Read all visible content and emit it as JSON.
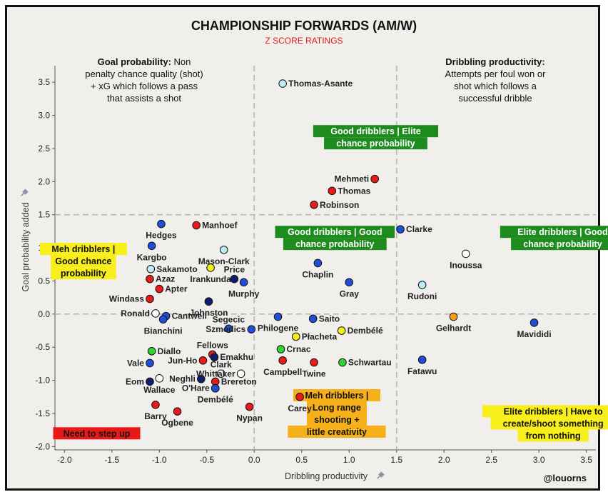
{
  "title": "CHAMPIONSHIP FORWARDS (AM/W)",
  "subtitle": "Z SCORE RATINGS",
  "credit": "@louorns",
  "notes": {
    "left": {
      "bold": "Goal probability:",
      "lines": [
        " Non",
        "penalty chance quality (shot)",
        "+ xG which follows a pass",
        "that assists a shot"
      ]
    },
    "right": {
      "bold": "Dribbling productivity:",
      "lines": [
        "Attempts per foul won or",
        "shot which follows a",
        "successful dribble"
      ]
    }
  },
  "badges": [
    {
      "lines": [
        "Good dribblers | Elite",
        "chance probability"
      ],
      "bg": "#1e8b1e",
      "fg": "#ffffff",
      "at": [
        1.28,
        2.67
      ]
    },
    {
      "lines": [
        "Good dribblers | Good",
        "chance probability"
      ],
      "bg": "#1e8b1e",
      "fg": "#ffffff",
      "at": [
        0.85,
        1.15
      ]
    },
    {
      "lines": [
        "Elite dribblers | Good",
        "chance probability"
      ],
      "bg": "#1e8b1e",
      "fg": "#ffffff",
      "at": [
        3.25,
        1.15
      ]
    },
    {
      "lines": [
        "Meh dribblers |",
        "Good chance",
        "probability"
      ],
      "bg": "#f7ee1a",
      "fg": "#111111",
      "at": [
        -1.8,
        0.8
      ]
    },
    {
      "lines": [
        "Meh dribblers |",
        "Long range",
        "shooting +",
        "little creativity"
      ],
      "bg": "#f5b01a",
      "fg": "#111111",
      "at": [
        0.87,
        -1.5
      ]
    },
    {
      "lines": [
        "Elite dribblers | Have to",
        "create/shoot something",
        "from nothing"
      ],
      "bg": "#f7ee1a",
      "fg": "#111111",
      "at": [
        3.15,
        -1.65
      ]
    },
    {
      "lines": [
        "Need to step up"
      ],
      "bg": "#e81818",
      "fg": "#111111",
      "at": [
        -1.66,
        -1.8
      ]
    }
  ],
  "chart_data": {
    "type": "scatter",
    "title": "CHAMPIONSHIP FORWARDS (AM/W)",
    "subtitle": "Z SCORE RATINGS",
    "xlabel": "Dribbling productivity",
    "ylabel": "Goal probability added",
    "xlim": [
      -2.1,
      3.6
    ],
    "ylim": [
      -2.05,
      3.75
    ],
    "xticks": [
      "-2.0",
      "-1.5",
      "-1.0",
      "-0.5",
      "0.0",
      "0.5",
      "1.0",
      "1.5",
      "2.0",
      "2.5",
      "3.0",
      "3.5"
    ],
    "yticks": [
      "-2.0",
      "-1.5",
      "-1.0",
      "-0.5",
      "0.0",
      "0.5",
      "1.0",
      "1.5",
      "2.0",
      "2.5",
      "3.0",
      "3.5"
    ],
    "reference_lines": {
      "x": [
        0.0,
        1.5
      ],
      "y": [
        0.0,
        1.5
      ]
    },
    "grid": false,
    "colors": {
      "red": "#e81b1b",
      "blue": "#1f4fd6",
      "navy": "#0f1f6e",
      "cyan": "#bdeef5",
      "white": "#ffffff",
      "yellow": "#f4f118",
      "green": "#2ed62e",
      "orange": "#f5a01a"
    },
    "points": [
      {
        "name": "Thomas-Asante",
        "x": 0.3,
        "y": 3.48,
        "color": "cyan",
        "label_side": "right"
      },
      {
        "name": "Mehmeti",
        "x": 1.27,
        "y": 2.04,
        "color": "red",
        "label_side": "left"
      },
      {
        "name": "Thomas",
        "x": 0.82,
        "y": 1.86,
        "color": "red",
        "label_side": "right"
      },
      {
        "name": "Robinson",
        "x": 0.63,
        "y": 1.65,
        "color": "red",
        "label_side": "right"
      },
      {
        "name": "Clarke",
        "x": 1.54,
        "y": 1.28,
        "color": "blue",
        "label_side": "right"
      },
      {
        "name": "Inoussa",
        "x": 2.23,
        "y": 0.91,
        "color": "white",
        "label_side": "below"
      },
      {
        "name": "Rudoni",
        "x": 1.77,
        "y": 0.44,
        "color": "cyan",
        "label_side": "below"
      },
      {
        "name": "Chaplin",
        "x": 0.67,
        "y": 0.77,
        "color": "blue",
        "label_side": "below"
      },
      {
        "name": "Gray",
        "x": 1.0,
        "y": 0.48,
        "color": "blue",
        "label_side": "below"
      },
      {
        "name": "Gelhardt",
        "x": 2.1,
        "y": -0.04,
        "color": "orange",
        "label_side": "below"
      },
      {
        "name": "Mavididi",
        "x": 2.95,
        "y": -0.13,
        "color": "blue",
        "label_side": "below"
      },
      {
        "name": "Fatawu",
        "x": 1.77,
        "y": -0.69,
        "color": "blue",
        "label_side": "below"
      },
      {
        "name": "Saito",
        "x": 0.62,
        "y": -0.07,
        "color": "blue",
        "label_side": "right"
      },
      {
        "name": "Philogene",
        "x": 0.25,
        "y": -0.04,
        "color": "blue",
        "label_side": "below"
      },
      {
        "name": "Dembélé",
        "x": 0.92,
        "y": -0.25,
        "color": "yellow",
        "label_side": "right"
      },
      {
        "name": "Płacheta",
        "x": 0.44,
        "y": -0.34,
        "color": "yellow",
        "label_side": "right"
      },
      {
        "name": "Crnac",
        "x": 0.28,
        "y": -0.53,
        "color": "green",
        "label_side": "right"
      },
      {
        "name": "Schwartau",
        "x": 0.93,
        "y": -0.73,
        "color": "green",
        "label_side": "right"
      },
      {
        "name": "Campbell",
        "x": 0.3,
        "y": -0.7,
        "color": "red",
        "label_side": "below"
      },
      {
        "name": "Twine",
        "x": 0.63,
        "y": -0.73,
        "color": "red",
        "label_side": "below"
      },
      {
        "name": "Carey",
        "x": 0.48,
        "y": -1.25,
        "color": "red",
        "label_side": "below"
      },
      {
        "name": "Manhoef",
        "x": -0.61,
        "y": 1.34,
        "color": "red",
        "label_side": "right"
      },
      {
        "name": "Hedges",
        "x": -0.98,
        "y": 1.36,
        "color": "blue",
        "label_side": "below"
      },
      {
        "name": "Kargbo",
        "x": -1.08,
        "y": 1.03,
        "color": "blue",
        "label_side": "below"
      },
      {
        "name": "Mason-Clark",
        "x": -0.32,
        "y": 0.97,
        "color": "cyan",
        "label_side": "below"
      },
      {
        "name": "Sakamoto",
        "x": -1.09,
        "y": 0.68,
        "color": "cyan",
        "label_side": "right"
      },
      {
        "name": "Irankunda",
        "x": -0.46,
        "y": 0.7,
        "color": "yellow",
        "label_side": "below"
      },
      {
        "name": "Azaz",
        "x": -1.1,
        "y": 0.53,
        "color": "red",
        "label_side": "right"
      },
      {
        "name": "Price",
        "x": -0.21,
        "y": 0.53,
        "color": "navy",
        "label_side": "above"
      },
      {
        "name": "Murphy",
        "x": -0.11,
        "y": 0.48,
        "color": "blue",
        "label_side": "below"
      },
      {
        "name": "Apter",
        "x": -1.0,
        "y": 0.38,
        "color": "red",
        "label_side": "right"
      },
      {
        "name": "Windass",
        "x": -1.1,
        "y": 0.23,
        "color": "red",
        "label_side": "left"
      },
      {
        "name": "Johnston",
        "x": -0.48,
        "y": 0.19,
        "color": "navy",
        "label_side": "below"
      },
      {
        "name": "Ronald",
        "x": -1.04,
        "y": 0.01,
        "color": "white",
        "label_side": "left"
      },
      {
        "name": "Cantwell",
        "x": -0.93,
        "y": -0.03,
        "color": "blue",
        "label_side": "right"
      },
      {
        "name": "Bianchini",
        "x": -0.96,
        "y": -0.08,
        "color": "blue",
        "label_side": "below"
      },
      {
        "name": "Segecic",
        "x": -0.27,
        "y": -0.22,
        "color": "blue",
        "label_side": "above"
      },
      {
        "name": "Szmodics",
        "x": -0.03,
        "y": -0.23,
        "color": "blue",
        "label_side": "left"
      },
      {
        "name": "Diallo",
        "x": -1.08,
        "y": -0.56,
        "color": "green",
        "label_side": "right"
      },
      {
        "name": "Fellows",
        "x": -0.44,
        "y": -0.61,
        "color": "red",
        "label_side": "above"
      },
      {
        "name": "Emakhu",
        "x": -0.42,
        "y": -0.65,
        "color": "navy",
        "label_side": "right"
      },
      {
        "name": "Jun-Ho",
        "x": -0.54,
        "y": -0.7,
        "color": "red",
        "label_side": "left"
      },
      {
        "name": "Vale",
        "x": -1.1,
        "y": -0.74,
        "color": "blue",
        "label_side": "left"
      },
      {
        "name": "Clark",
        "x": -0.35,
        "y": -0.9,
        "color": "white",
        "label_side": "above"
      },
      {
        "name": "Whittaker",
        "x": -0.14,
        "y": -0.9,
        "color": "white",
        "label_side": "left"
      },
      {
        "name": "Eom",
        "x": -1.1,
        "y": -1.02,
        "color": "navy",
        "label_side": "left"
      },
      {
        "name": "Wallace",
        "x": -1.0,
        "y": -0.97,
        "color": "white",
        "label_side": "below"
      },
      {
        "name": "Neghli",
        "x": -0.56,
        "y": -0.98,
        "color": "navy",
        "label_side": "left"
      },
      {
        "name": "Brereton",
        "x": -0.41,
        "y": -1.02,
        "color": "red",
        "label_side": "right"
      },
      {
        "name": "O'Hare",
        "x": -0.41,
        "y": -1.12,
        "color": "blue",
        "label_side": "left"
      },
      {
        "name": "Dembélé",
        "x": -0.41,
        "y": -1.12,
        "color": "blue",
        "label_side": "below"
      },
      {
        "name": "Barry",
        "x": -1.04,
        "y": -1.37,
        "color": "red",
        "label_side": "below"
      },
      {
        "name": "Ogbene",
        "x": -0.81,
        "y": -1.47,
        "color": "red",
        "label_side": "below"
      },
      {
        "name": "Nypan",
        "x": -0.05,
        "y": -1.4,
        "color": "red",
        "label_side": "below"
      }
    ]
  }
}
